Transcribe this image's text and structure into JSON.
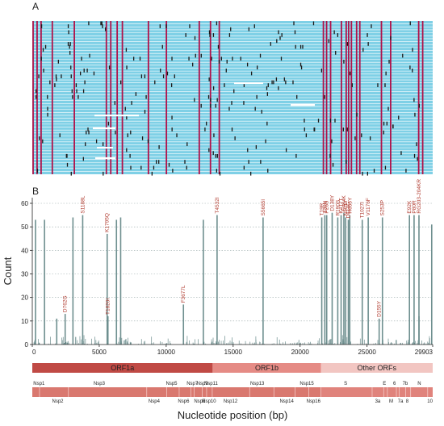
{
  "panels": {
    "a_label": "A",
    "b_label": "B"
  },
  "colors": {
    "background_row": "#7fd0e6",
    "row_separator": "#ffffff",
    "variant_line": "#b0124a",
    "sample_dot": "#1a1a1a",
    "gap": "#ffffff",
    "bar": "#6e8f8f",
    "mut_label": "#b03a2e",
    "orf1a": "#c04a45",
    "orf1b": "#e58b85",
    "other_orfs": "#f2c6c2",
    "nsp_track": "#d9786f"
  },
  "heatmap": {
    "rows": 52,
    "variant_positions_fraction": [
      0.002,
      0.012,
      0.022,
      0.05,
      0.105,
      0.185,
      0.196,
      0.212,
      0.225,
      0.29,
      0.335,
      0.417,
      0.445,
      0.467,
      0.727,
      0.735,
      0.745,
      0.772,
      0.784,
      0.79,
      0.797,
      0.81,
      0.818,
      0.872,
      0.895,
      0.965,
      0.975
    ]
  },
  "chart_data": {
    "type": "bar",
    "xlabel": "Nucleotide position (bp)",
    "ylabel": "Count",
    "xlim": [
      0,
      29903
    ],
    "ylim": [
      0,
      60
    ],
    "xticks": [
      0,
      5000,
      10000,
      15000,
      20000,
      25000,
      29903
    ],
    "xtick_labels": [
      "0",
      "5000",
      "10000",
      "15000",
      "20000",
      "25000",
      "29903"
    ],
    "yticks": [
      0,
      10,
      20,
      30,
      40,
      50,
      60
    ],
    "major_mutations": [
      {
        "pos": 241,
        "count": 53,
        "label": ""
      },
      {
        "pos": 913,
        "count": 53,
        "label": ""
      },
      {
        "pos": 1825,
        "count": 11,
        "label": ""
      },
      {
        "pos": 2455,
        "count": 13,
        "label": "D762G"
      },
      {
        "pos": 3037,
        "count": 54,
        "label": ""
      },
      {
        "pos": 3764,
        "count": 55,
        "label": "S1188L"
      },
      {
        "pos": 5592,
        "count": 47,
        "label": "K1795Q"
      },
      {
        "pos": 5650,
        "count": 12,
        "label": "T1820I"
      },
      {
        "pos": 6285,
        "count": 53,
        "label": ""
      },
      {
        "pos": 6600,
        "count": 54,
        "label": ""
      },
      {
        "pos": 11288,
        "count": 17,
        "label": "F3677L"
      },
      {
        "pos": 12775,
        "count": 53,
        "label": ""
      },
      {
        "pos": 13800,
        "count": 55,
        "label": "T4532I"
      },
      {
        "pos": 17236,
        "count": 54,
        "label": "S5665I"
      },
      {
        "pos": 21618,
        "count": 54,
        "label": "T19R"
      },
      {
        "pos": 21846,
        "count": 55,
        "label": "T20N"
      },
      {
        "pos": 21987,
        "count": 55,
        "label": "P26S"
      },
      {
        "pos": 22395,
        "count": 56,
        "label": "D138Y"
      },
      {
        "pos": 22813,
        "count": 54,
        "label": "R190S"
      },
      {
        "pos": 23063,
        "count": 55,
        "label": "K417T"
      },
      {
        "pos": 23271,
        "count": 56,
        "label": "E484K"
      },
      {
        "pos": 23403,
        "count": 54,
        "label": "N501Y"
      },
      {
        "pos": 23604,
        "count": 53,
        "label": "D614G"
      },
      {
        "pos": 23709,
        "count": 55,
        "label": "H655Y"
      },
      {
        "pos": 24642,
        "count": 53,
        "label": "T1027I"
      },
      {
        "pos": 25088,
        "count": 54,
        "label": "V1176F"
      },
      {
        "pos": 25904,
        "count": 11,
        "label": "D155Y"
      },
      {
        "pos": 26149,
        "count": 54,
        "label": "S253P"
      },
      {
        "pos": 28167,
        "count": 55,
        "label": "E92K"
      },
      {
        "pos": 28512,
        "count": 55,
        "label": "P80R"
      },
      {
        "pos": 28877,
        "count": 55,
        "label": "RG203-204KR"
      },
      {
        "pos": 28881,
        "count": 12,
        "label": ""
      },
      {
        "pos": 29830,
        "count": 51,
        "label": ""
      }
    ]
  },
  "genome": {
    "orfs": [
      {
        "name": "ORF1a",
        "start": 0,
        "end": 13468
      },
      {
        "name": "ORF1b",
        "start": 13468,
        "end": 21555
      },
      {
        "name": "Other ORFs",
        "start": 21555,
        "end": 29903
      }
    ],
    "nsps_top": [
      {
        "name": "Nsp1",
        "pos": 500
      },
      {
        "name": "Nsp3",
        "pos": 5000
      },
      {
        "name": "Nsp5",
        "pos": 10400
      },
      {
        "name": "Nsp7",
        "pos": 11950
      },
      {
        "name": "Nsp9",
        "pos": 12700
      },
      {
        "name": "Nsp11",
        "pos": 13350
      },
      {
        "name": "Nsp13",
        "pos": 16800
      },
      {
        "name": "Nsp15",
        "pos": 20500
      },
      {
        "name": "S",
        "pos": 23400
      },
      {
        "name": "E",
        "pos": 26300
      },
      {
        "name": "6",
        "pos": 27050
      },
      {
        "name": "7b",
        "pos": 27850
      }
    ],
    "nsps_bottom": [
      {
        "name": "Nsp2",
        "pos": 1900
      },
      {
        "name": "Nsp4",
        "pos": 9100
      },
      {
        "name": "Nsp6",
        "pos": 11300
      },
      {
        "name": "Nsp8",
        "pos": 12500
      },
      {
        "name": "Nsp10",
        "pos": 13200
      },
      {
        "name": "Nsp12",
        "pos": 14800
      },
      {
        "name": "Nsp14",
        "pos": 19000
      },
      {
        "name": "Nsp16",
        "pos": 21000
      },
      {
        "name": "3a",
        "pos": 25800
      },
      {
        "name": "M",
        "pos": 26800
      },
      {
        "name": "7a",
        "pos": 27500
      },
      {
        "name": "8",
        "pos": 28000
      },
      {
        "name": "10",
        "pos": 29700
      }
    ],
    "nsps_right": [
      {
        "name": "N",
        "pos": 28900
      }
    ]
  }
}
